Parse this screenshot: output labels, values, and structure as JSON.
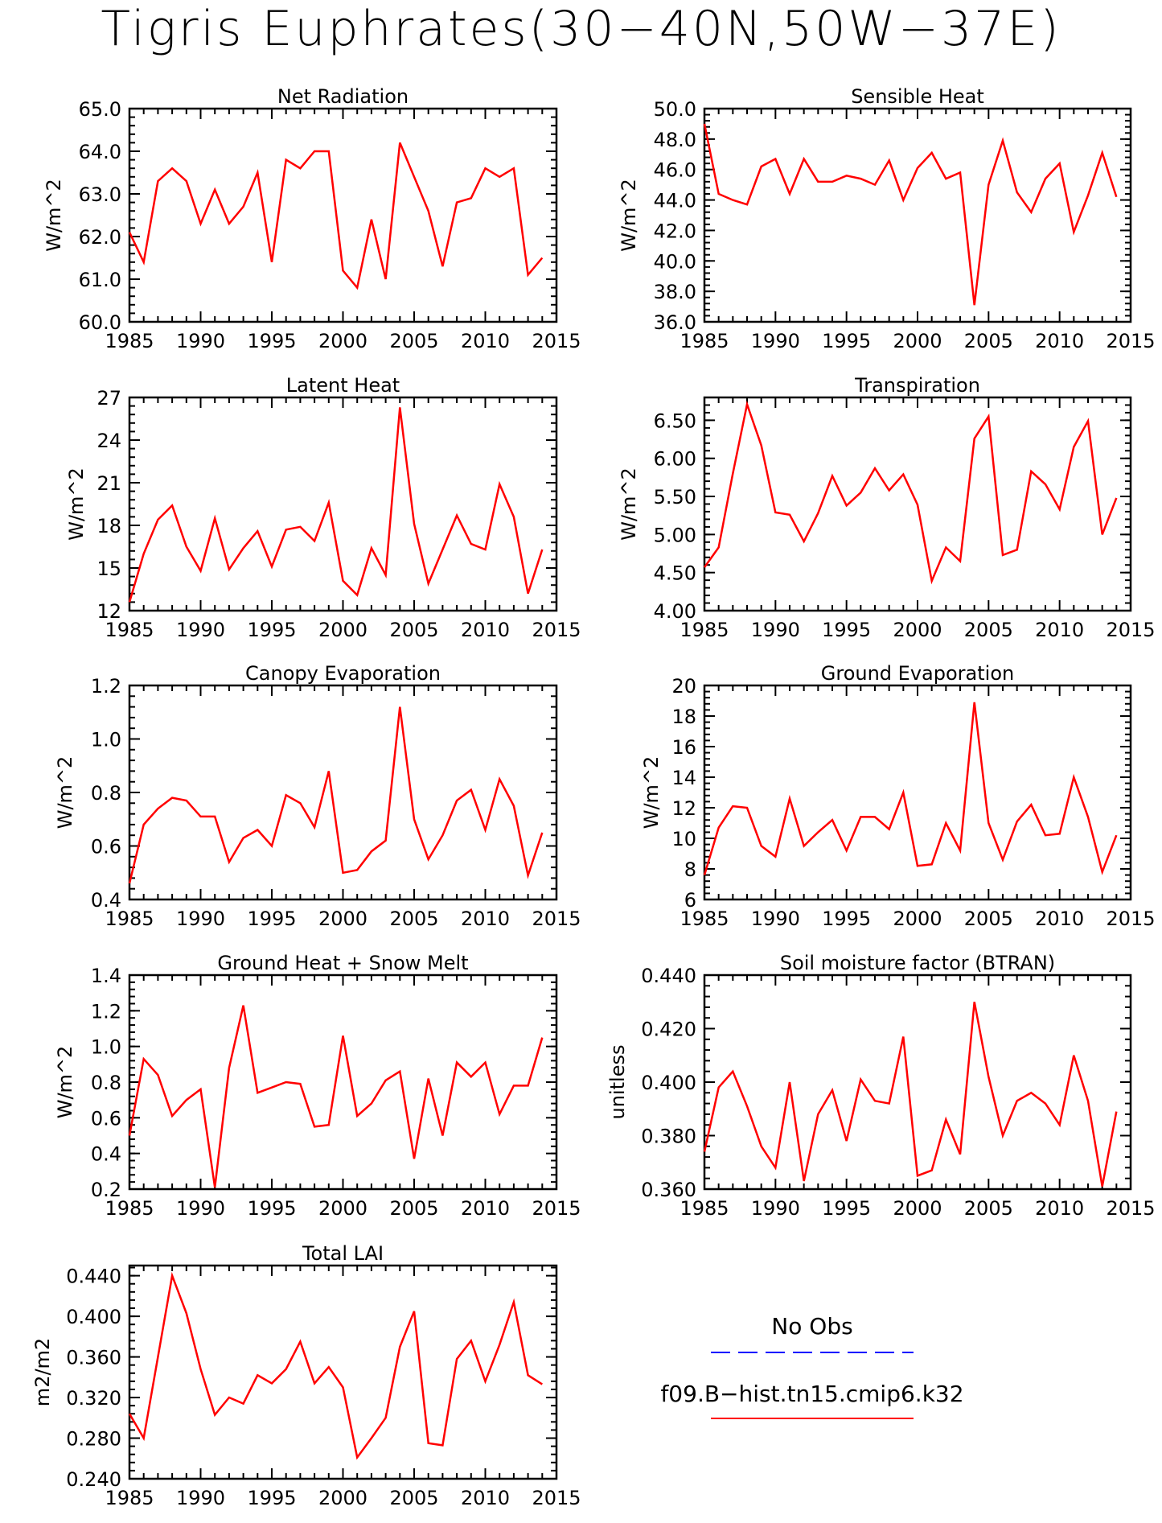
{
  "title": "Tigris Euphrates(30−40N,50W−37E)",
  "colors": {
    "model": "#ff0000",
    "obs": "#0000ff",
    "axis": "#000000"
  },
  "legend": {
    "obs_label": "No Obs",
    "model_label": "f09.B−hist.tn15.cmip6.k32"
  },
  "chart_data": [
    {
      "type": "line",
      "title": "Net Radiation",
      "ylabel": "W/m^2",
      "xlim": [
        1985,
        2015
      ],
      "ylim": [
        60,
        65
      ],
      "x_ticks": [
        "1985",
        "1990",
        "1995",
        "2000",
        "2005",
        "2010",
        "2015"
      ],
      "y_ticks": [
        "60.0",
        "61.0",
        "62.0",
        "63.0",
        "64.0",
        "65.0"
      ],
      "series": [
        {
          "x_start": 1985,
          "values": [
            62.1,
            61.4,
            63.3,
            63.6,
            63.3,
            62.3,
            63.1,
            62.3,
            62.7,
            63.5,
            61.4,
            63.8,
            63.6,
            64.0,
            64.0,
            61.2,
            60.8,
            62.4,
            61.0,
            64.2,
            63.4,
            62.6,
            61.3,
            62.8,
            62.9,
            63.6,
            63.4,
            63.6,
            61.1,
            61.5
          ]
        }
      ]
    },
    {
      "type": "line",
      "title": "Sensible Heat",
      "ylabel": "W/m^2",
      "xlim": [
        1985,
        2015
      ],
      "ylim": [
        36,
        50
      ],
      "x_ticks": [
        "1985",
        "1990",
        "1995",
        "2000",
        "2005",
        "2010",
        "2015"
      ],
      "y_ticks": [
        "36.0",
        "38.0",
        "40.0",
        "42.0",
        "44.0",
        "46.0",
        "48.0",
        "50.0"
      ],
      "series": [
        {
          "x_start": 1985,
          "values": [
            49.0,
            44.4,
            44.0,
            43.7,
            46.2,
            46.7,
            44.4,
            46.7,
            45.2,
            45.2,
            45.6,
            45.4,
            45.0,
            46.6,
            44.0,
            46.1,
            47.1,
            45.4,
            45.8,
            37.1,
            45.0,
            47.9,
            44.5,
            43.2,
            45.4,
            46.4,
            41.9,
            44.3,
            47.1,
            44.2
          ]
        }
      ]
    },
    {
      "type": "line",
      "title": "Latent Heat",
      "ylabel": "W/m^2",
      "xlim": [
        1985,
        2015
      ],
      "ylim": [
        12,
        27
      ],
      "x_ticks": [
        "1985",
        "1990",
        "1995",
        "2000",
        "2005",
        "2010",
        "2015"
      ],
      "y_ticks": [
        "12",
        "15",
        "18",
        "21",
        "24",
        "27"
      ],
      "series": [
        {
          "x_start": 1985,
          "values": [
            12.6,
            16.0,
            18.4,
            19.4,
            16.5,
            14.8,
            18.5,
            14.9,
            16.4,
            17.6,
            15.1,
            17.7,
            17.9,
            16.9,
            19.6,
            14.1,
            13.1,
            16.4,
            14.5,
            26.3,
            18.1,
            13.9,
            16.3,
            18.7,
            16.7,
            16.3,
            20.9,
            18.6,
            13.2,
            16.3
          ]
        }
      ]
    },
    {
      "type": "line",
      "title": "Transpiration",
      "ylabel": "W/m^2",
      "xlim": [
        1985,
        2015
      ],
      "ylim": [
        4,
        6.8
      ],
      "x_ticks": [
        "1985",
        "1990",
        "1995",
        "2000",
        "2005",
        "2010",
        "2015"
      ],
      "y_ticks": [
        "4.00",
        "4.50",
        "5.00",
        "5.50",
        "6.00",
        "6.50"
      ],
      "series": [
        {
          "x_start": 1985,
          "values": [
            4.57,
            4.83,
            5.8,
            6.71,
            6.17,
            5.29,
            5.26,
            4.91,
            5.28,
            5.77,
            5.38,
            5.55,
            5.87,
            5.58,
            5.79,
            5.39,
            4.39,
            4.83,
            4.65,
            6.26,
            6.55,
            4.73,
            4.8,
            5.83,
            5.66,
            5.33,
            6.15,
            6.49,
            5.0,
            5.48
          ]
        }
      ]
    },
    {
      "type": "line",
      "title": "Canopy Evaporation",
      "ylabel": "W/m^2",
      "xlim": [
        1985,
        2015
      ],
      "ylim": [
        0.4,
        1.2
      ],
      "x_ticks": [
        "1985",
        "1990",
        "1995",
        "2000",
        "2005",
        "2010",
        "2015"
      ],
      "y_ticks": [
        "0.4",
        "0.6",
        "0.8",
        "1.0",
        "1.2"
      ],
      "series": [
        {
          "x_start": 1985,
          "values": [
            0.46,
            0.68,
            0.74,
            0.78,
            0.77,
            0.71,
            0.71,
            0.54,
            0.63,
            0.66,
            0.6,
            0.79,
            0.76,
            0.67,
            0.88,
            0.5,
            0.51,
            0.58,
            0.62,
            1.12,
            0.7,
            0.55,
            0.64,
            0.77,
            0.81,
            0.66,
            0.85,
            0.75,
            0.49,
            0.65
          ]
        }
      ]
    },
    {
      "type": "line",
      "title": "Ground Evaporation",
      "ylabel": "W/m^2",
      "xlim": [
        1985,
        2015
      ],
      "ylim": [
        6,
        20
      ],
      "x_ticks": [
        "1985",
        "1990",
        "1995",
        "2000",
        "2005",
        "2010",
        "2015"
      ],
      "y_ticks": [
        "6",
        "8",
        "10",
        "12",
        "14",
        "16",
        "18",
        "20"
      ],
      "series": [
        {
          "x_start": 1985,
          "values": [
            7.6,
            10.7,
            12.1,
            12.0,
            9.5,
            8.8,
            12.6,
            9.5,
            10.4,
            11.2,
            9.2,
            11.4,
            11.4,
            10.6,
            13.0,
            8.2,
            8.3,
            11.0,
            9.2,
            18.9,
            11.0,
            8.6,
            11.1,
            12.2,
            10.2,
            10.3,
            14.0,
            11.4,
            7.8,
            10.2
          ]
        }
      ]
    },
    {
      "type": "line",
      "title": "Ground Heat + Snow Melt",
      "ylabel": "W/m^2",
      "xlim": [
        1985,
        2015
      ],
      "ylim": [
        0.2,
        1.4
      ],
      "x_ticks": [
        "1985",
        "1990",
        "1995",
        "2000",
        "2005",
        "2010",
        "2015"
      ],
      "y_ticks": [
        "0.2",
        "0.4",
        "0.6",
        "0.8",
        "1.0",
        "1.2",
        "1.4"
      ],
      "series": [
        {
          "x_start": 1985,
          "values": [
            0.5,
            0.93,
            0.84,
            0.61,
            0.7,
            0.76,
            0.21,
            0.88,
            1.23,
            0.74,
            0.77,
            0.8,
            0.79,
            0.55,
            0.56,
            1.06,
            0.61,
            0.68,
            0.81,
            0.86,
            0.37,
            0.82,
            0.5,
            0.91,
            0.83,
            0.91,
            0.62,
            0.78,
            0.78,
            1.05
          ]
        }
      ]
    },
    {
      "type": "line",
      "title": "Soil moisture factor (BTRAN)",
      "ylabel": "unitless",
      "xlim": [
        1985,
        2015
      ],
      "ylim": [
        0.36,
        0.44
      ],
      "x_ticks": [
        "1985",
        "1990",
        "1995",
        "2000",
        "2005",
        "2010",
        "2015"
      ],
      "y_ticks": [
        "0.360",
        "0.380",
        "0.400",
        "0.420",
        "0.440"
      ],
      "series": [
        {
          "x_start": 1985,
          "values": [
            0.374,
            0.398,
            0.404,
            0.391,
            0.376,
            0.368,
            0.4,
            0.363,
            0.388,
            0.397,
            0.378,
            0.401,
            0.393,
            0.392,
            0.417,
            0.365,
            0.367,
            0.386,
            0.373,
            0.43,
            0.402,
            0.38,
            0.393,
            0.396,
            0.392,
            0.384,
            0.41,
            0.393,
            0.361,
            0.389
          ]
        }
      ]
    },
    {
      "type": "line",
      "title": "Total LAI",
      "ylabel": "m2/m2",
      "xlim": [
        1985,
        2015
      ],
      "ylim": [
        0.24,
        0.45
      ],
      "x_ticks": [
        "1985",
        "1990",
        "1995",
        "2000",
        "2005",
        "2010",
        "2015"
      ],
      "y_ticks": [
        "0.240",
        "0.280",
        "0.320",
        "0.360",
        "0.400",
        "0.440"
      ],
      "series": [
        {
          "x_start": 1985,
          "values": [
            0.304,
            0.28,
            0.36,
            0.44,
            0.403,
            0.348,
            0.303,
            0.32,
            0.314,
            0.342,
            0.334,
            0.348,
            0.375,
            0.334,
            0.35,
            0.33,
            0.261,
            0.28,
            0.3,
            0.37,
            0.405,
            0.275,
            0.273,
            0.358,
            0.376,
            0.336,
            0.372,
            0.414,
            0.342,
            0.333
          ]
        }
      ]
    }
  ]
}
